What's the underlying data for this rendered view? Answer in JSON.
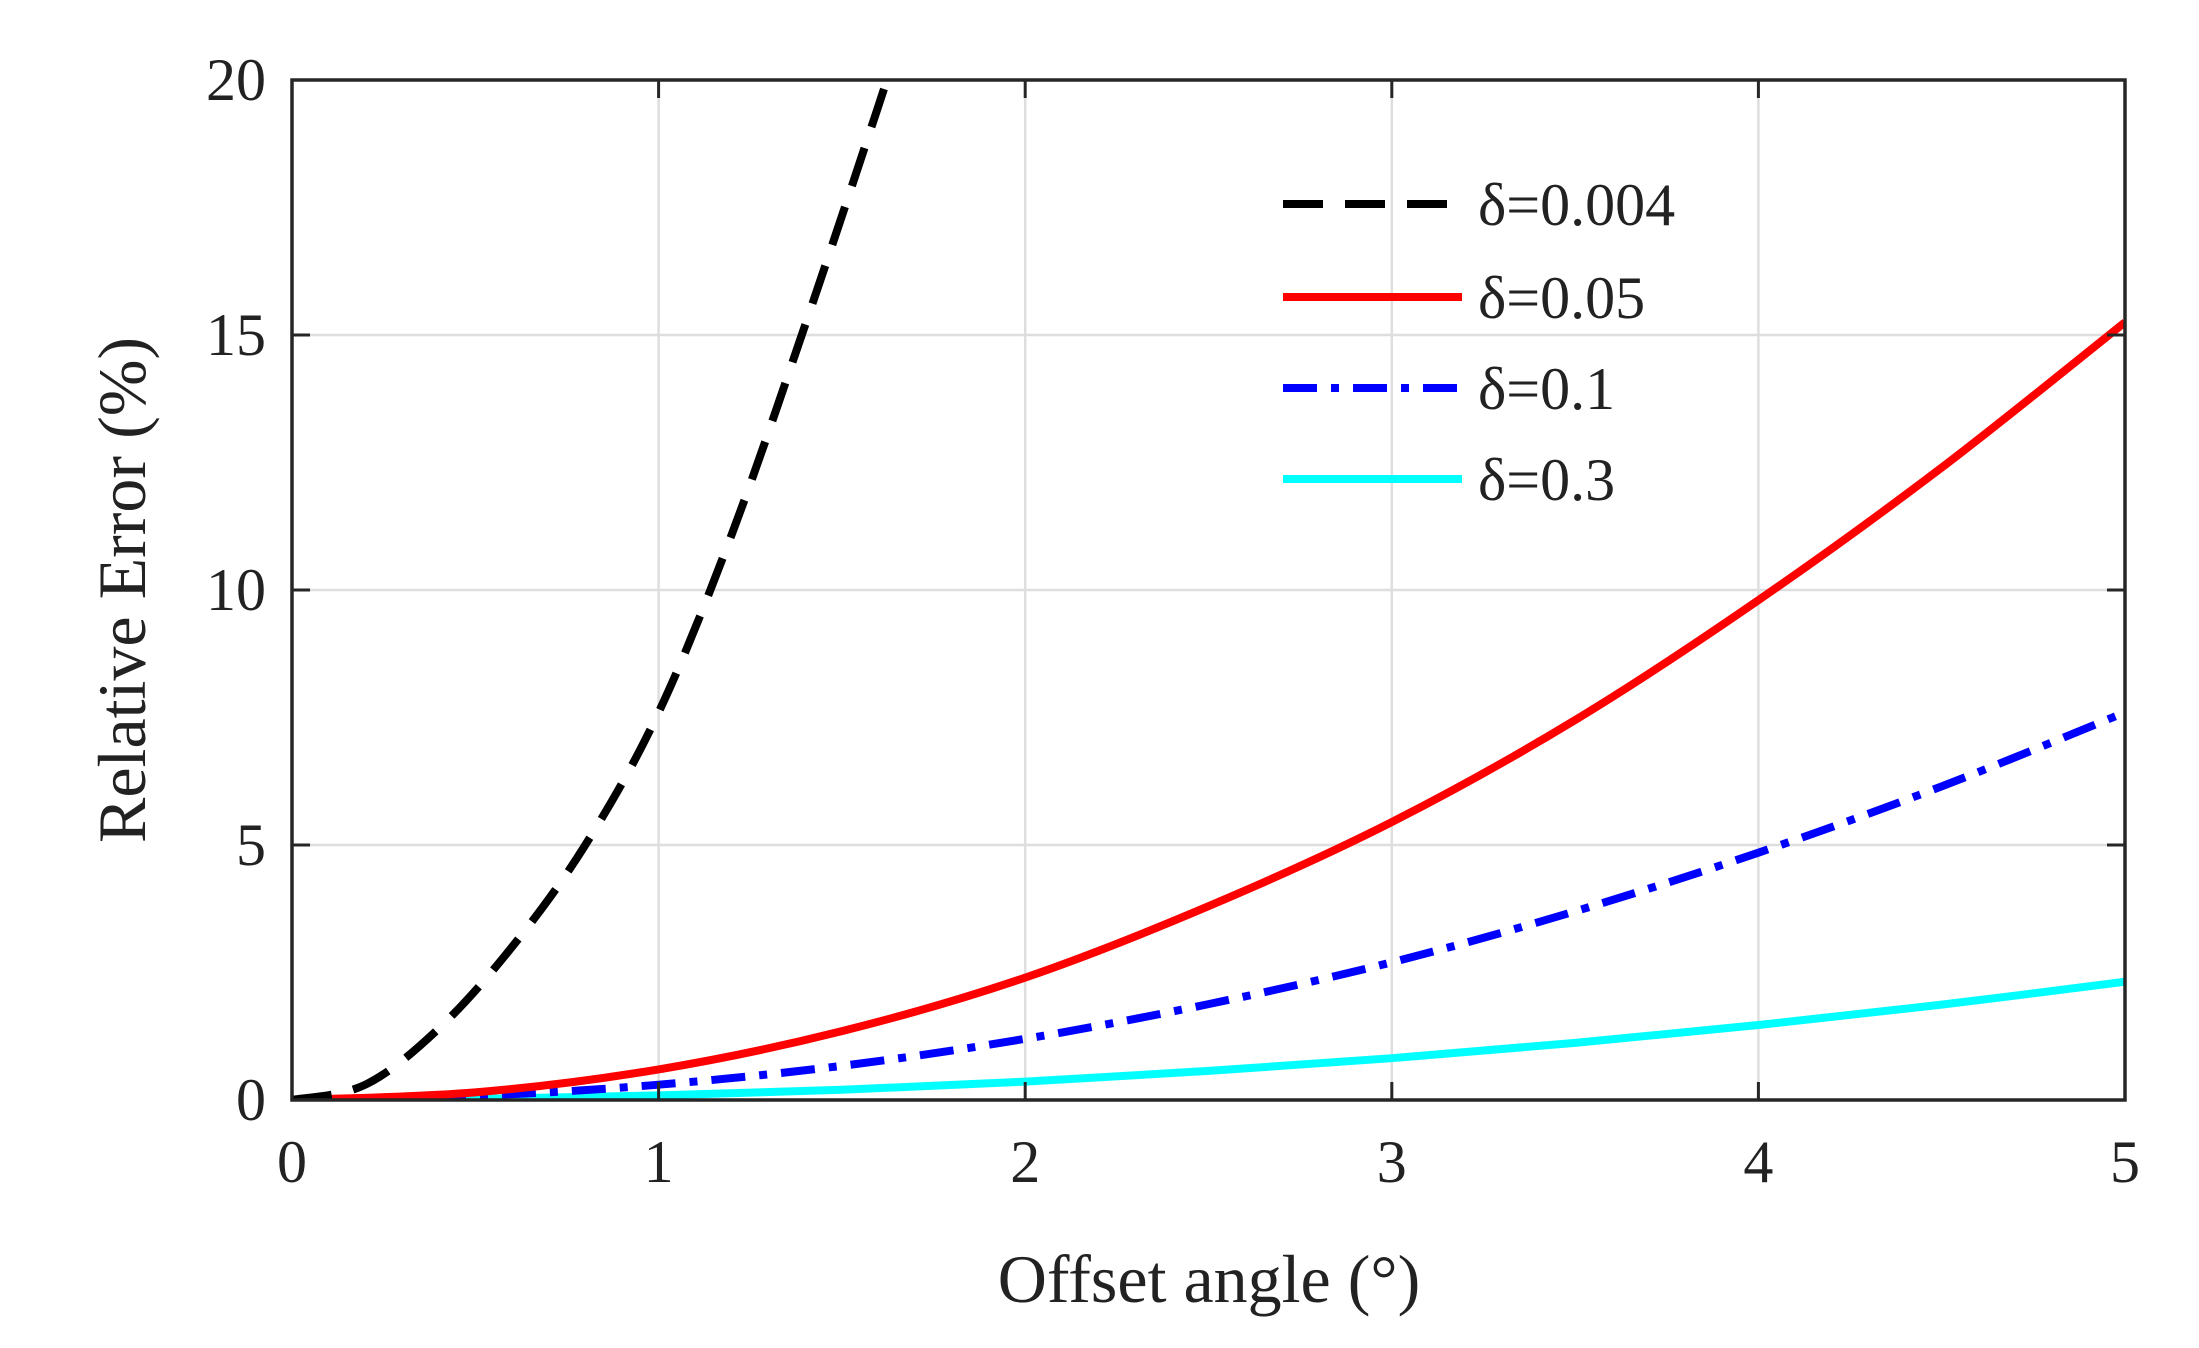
{
  "chart_data": {
    "type": "line",
    "title": "",
    "xlabel": "Offset angle (°)",
    "ylabel": "Relative Error (%)",
    "xlim": [
      0,
      5
    ],
    "ylim": [
      0,
      20
    ],
    "grid": true,
    "legend_position": "top-right",
    "x_ticks": [
      0,
      1,
      2,
      3,
      4,
      5
    ],
    "y_ticks": [
      0,
      5,
      10,
      15,
      20
    ],
    "x_tick_labels": [
      "0",
      "1",
      "2",
      "3",
      "4",
      "5"
    ],
    "y_tick_labels": [
      "0",
      "5",
      "10",
      "15",
      "20"
    ],
    "series": [
      {
        "name": "δ=0.004",
        "color": "#000000",
        "style": "dashed",
        "x": [
          0,
          0.2,
          0.4,
          0.6,
          0.8,
          1.0,
          1.2,
          1.4,
          1.6,
          1.63
        ],
        "y": [
          0,
          0.3,
          1.4,
          3.0,
          5.0,
          7.6,
          11.1,
          15.2,
          19.5,
          20.2
        ]
      },
      {
        "name": "δ=0.05",
        "color": "#ff0000",
        "style": "solid",
        "x": [
          0,
          0.5,
          1.0,
          1.5,
          2.0,
          2.5,
          3.0,
          3.5,
          4.0,
          4.5,
          5.0
        ],
        "y": [
          0,
          0.15,
          0.6,
          1.35,
          2.4,
          3.8,
          5.45,
          7.45,
          9.8,
          12.4,
          15.25
        ]
      },
      {
        "name": "δ=0.1",
        "color": "#0000ff",
        "style": "dashdot",
        "x": [
          0,
          0.5,
          1.0,
          1.5,
          2.0,
          2.5,
          3.0,
          3.5,
          4.0,
          4.5,
          5.0
        ],
        "y": [
          0,
          0.08,
          0.3,
          0.67,
          1.2,
          1.88,
          2.7,
          3.7,
          4.85,
          6.15,
          7.6
        ]
      },
      {
        "name": "δ=0.3",
        "color": "#00ffff",
        "style": "solid",
        "x": [
          0,
          0.5,
          1.0,
          1.5,
          2.0,
          2.5,
          3.0,
          3.5,
          4.0,
          4.5,
          5.0
        ],
        "y": [
          0,
          0.02,
          0.09,
          0.2,
          0.36,
          0.57,
          0.82,
          1.12,
          1.47,
          1.87,
          2.32
        ]
      }
    ]
  }
}
